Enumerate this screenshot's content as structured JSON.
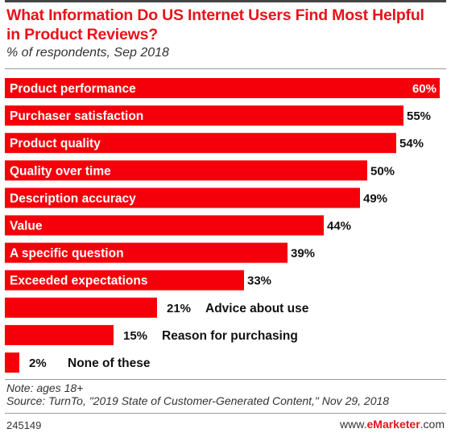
{
  "header": {
    "title": "What Information Do US Internet Users Find Most Helpful in Product Reviews?",
    "subtitle": "% of respondents, Sep 2018"
  },
  "chart_data": {
    "type": "bar",
    "orientation": "horizontal",
    "title": "What Information Do US Internet Users Find Most Helpful in Product Reviews?",
    "subtitle": "% of respondents, Sep 2018",
    "categories": [
      "Product performance",
      "Purchaser satisfaction",
      "Product quality",
      "Quality over time",
      "Description accuracy",
      "Value",
      "A specific question",
      "Exceeded expectations",
      "Advice about use",
      "Reason for purchasing",
      "None of these"
    ],
    "values": [
      60,
      55,
      54,
      50,
      49,
      44,
      39,
      33,
      21,
      15,
      2
    ],
    "value_suffix": "%",
    "xlim": [
      0,
      60
    ],
    "grid": false,
    "legend": "none",
    "bar_color": "#f5000a"
  },
  "notes": {
    "note": "Note: ages 18+",
    "source": "Source: TurnTo, \"2019 State of Customer-Generated Content,\" Nov 29, 2018"
  },
  "footer": {
    "chart_id": "245149",
    "brand_prefix": "www.",
    "brand_name": "eMarketer",
    "brand_suffix": ".com"
  }
}
